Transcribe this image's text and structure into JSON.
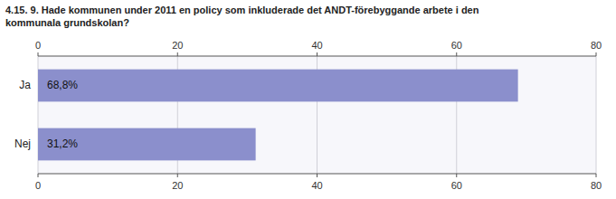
{
  "chart_data": {
    "type": "bar",
    "orientation": "horizontal",
    "title": "4.15. 9. Hade kommunen under 2011 en policy som inkluderade det ANDT-förebyggande arbete i den\nkommunala grundskolan?",
    "categories": [
      "Ja",
      "Nej"
    ],
    "values": [
      68.8,
      31.2
    ],
    "value_labels": [
      "68,8%",
      "31,2%"
    ],
    "data_labels": true,
    "color": "#8b8fcc",
    "xlim": [
      0,
      80
    ],
    "xticks": [
      0,
      20,
      40,
      60,
      80
    ],
    "grid": true
  }
}
